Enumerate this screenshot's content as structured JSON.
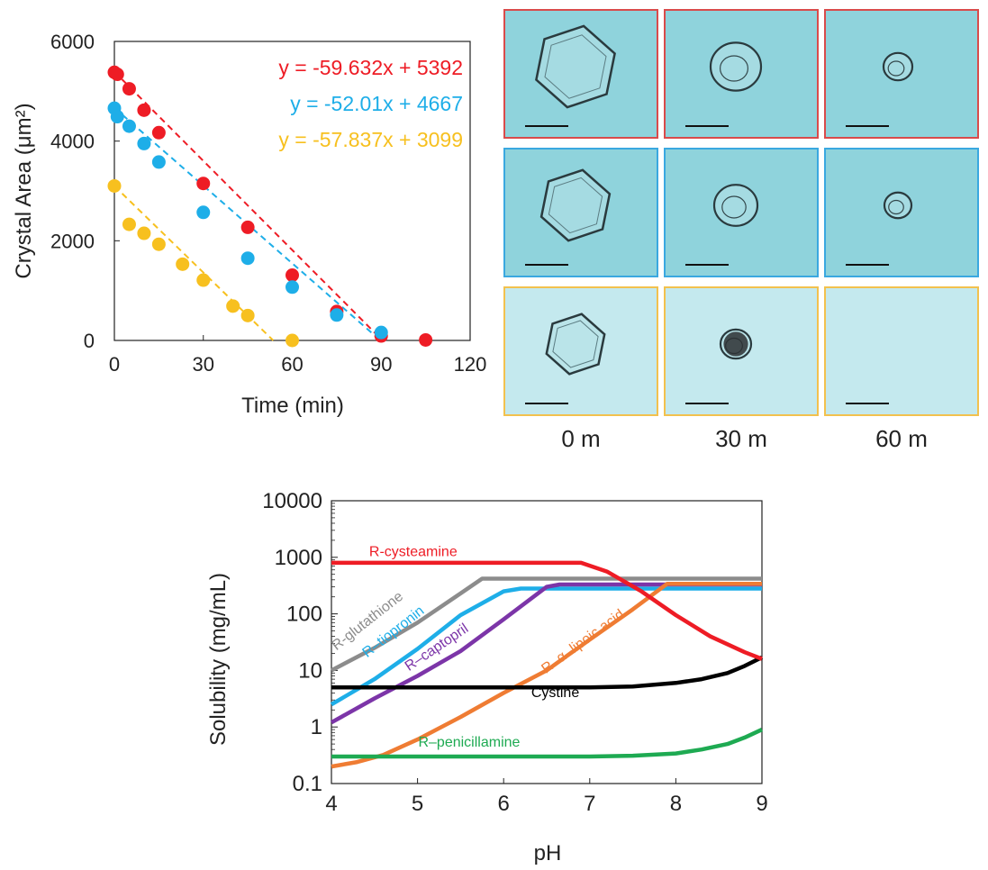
{
  "scatter": {
    "chart_data": {
      "type": "scatter",
      "xlabel": "Time (min)",
      "ylabel": "Crystal Area (μm²)",
      "xlim": [
        0,
        120
      ],
      "ylim": [
        0,
        6000
      ],
      "xticks": [
        "0",
        "30",
        "60",
        "90",
        "120"
      ],
      "yticks": [
        "0",
        "2000",
        "4000",
        "6000"
      ],
      "series": [
        {
          "color": "#ee1c25",
          "equation": "y = -59.632x + 5392",
          "slope": -59.632,
          "intercept": 5392,
          "x": [
            0,
            1,
            5,
            10,
            15,
            30,
            45,
            60,
            75,
            90,
            105
          ],
          "y": [
            5380,
            5340,
            5050,
            4620,
            4170,
            3150,
            2270,
            1310,
            580,
            90,
            10
          ]
        },
        {
          "color": "#1eaee8",
          "equation": "y = -52.01x + 4667",
          "slope": -52.01,
          "intercept": 4667,
          "x": [
            0,
            1,
            5,
            10,
            15,
            30,
            45,
            60,
            75,
            90
          ],
          "y": [
            4660,
            4490,
            4300,
            3950,
            3580,
            2570,
            1650,
            1070,
            510,
            160
          ]
        },
        {
          "color": "#f7c01f",
          "equation": "y = -57.837x + 3099",
          "slope": -57.837,
          "intercept": 3099,
          "x": [
            0,
            5,
            10,
            15,
            23,
            30,
            40,
            45,
            60
          ],
          "y": [
            3100,
            2330,
            2150,
            1930,
            1530,
            1210,
            690,
            500,
            0
          ]
        }
      ]
    }
  },
  "micro": {
    "time_labels": [
      "0 m",
      "30 m",
      "60 m"
    ],
    "rows": [
      "red",
      "blue",
      "yellow"
    ]
  },
  "solubility": {
    "chart_data": {
      "type": "line",
      "xlabel": "pH",
      "ylabel": "Solubility (mg/mL)",
      "xlim": [
        4,
        9
      ],
      "ylim": [
        0.1,
        10000
      ],
      "yscale": "log",
      "xticks": [
        "4",
        "5",
        "6",
        "7",
        "8",
        "9"
      ],
      "yticks": [
        "0.1",
        "1",
        "10",
        "100",
        "1000",
        "10000"
      ],
      "series": [
        {
          "name": "R-cysteamine",
          "color": "#ee1c25",
          "x": [
            4,
            5,
            6,
            6.9,
            7.2,
            7.6,
            8.0,
            8.4,
            8.8,
            9
          ],
          "y": [
            800,
            800,
            800,
            800,
            560,
            250,
            95,
            40,
            21,
            16
          ]
        },
        {
          "name": "R-glutathione",
          "color": "#8c8c8c",
          "x": [
            4,
            4.5,
            5,
            5.5,
            5.75,
            6,
            7,
            8,
            9
          ],
          "y": [
            10,
            25,
            70,
            230,
            420,
            420,
            420,
            420,
            420
          ]
        },
        {
          "name": "R–tiopronin",
          "color": "#1eaee8",
          "x": [
            4,
            4.5,
            5,
            5.5,
            6.0,
            6.2,
            7,
            8,
            9
          ],
          "y": [
            2.5,
            7,
            24,
            95,
            250,
            280,
            280,
            280,
            280
          ]
        },
        {
          "name": "R–captopril",
          "color": "#7c35a8",
          "x": [
            4,
            4.5,
            5,
            5.5,
            6,
            6.5,
            6.65,
            7,
            8,
            9
          ],
          "y": [
            1.2,
            3.2,
            8,
            22,
            80,
            300,
            330,
            330,
            330,
            330
          ]
        },
        {
          "name": "R–α–lipoic acid",
          "color": "#ef7c33",
          "x": [
            4,
            4.3,
            4.6,
            5,
            5.5,
            6,
            6.5,
            7,
            7.5,
            7.9,
            8,
            9
          ],
          "y": [
            0.2,
            0.24,
            0.32,
            0.6,
            1.5,
            4,
            10,
            35,
            120,
            340,
            340,
            340
          ]
        },
        {
          "name": "Cystine",
          "color": "#000000",
          "x": [
            4,
            5,
            6,
            7,
            7.5,
            8,
            8.3,
            8.6,
            8.8,
            9
          ],
          "y": [
            5,
            5,
            5,
            5,
            5.2,
            6,
            7,
            9,
            12,
            17
          ]
        },
        {
          "name": "R–penicillamine",
          "color": "#1eaa52",
          "x": [
            4,
            5,
            6,
            7,
            7.5,
            8,
            8.3,
            8.6,
            8.8,
            9
          ],
          "y": [
            0.3,
            0.3,
            0.3,
            0.3,
            0.31,
            0.34,
            0.4,
            0.5,
            0.65,
            0.9
          ]
        }
      ]
    }
  }
}
